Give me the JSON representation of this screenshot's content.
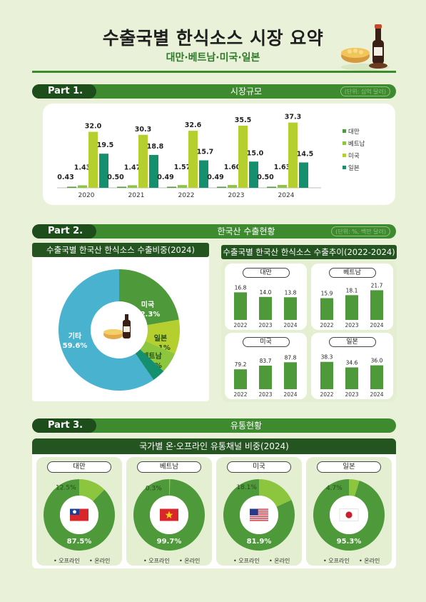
{
  "header": {
    "title": "수출국별 한식소스 시장 요약",
    "subtitle": "대만·베트남·미국·일본"
  },
  "part1": {
    "label": "Part 1.",
    "title": "시장규모",
    "unit": "(단위: 십억 달러)"
  },
  "part2": {
    "label": "Part 2.",
    "title": "한국산 수출현황",
    "unit": "(단위: %, 백만 달러)",
    "pie_heading": "수출국별 한국산 한식소스 수출비중(2024)",
    "trend_heading": "수출국별 한국산 한식소스 수출추이(2022-2024)"
  },
  "part3": {
    "label": "Part 3.",
    "title": "유통현황",
    "heading": "국가별 온·오프라인 유통채널 비중(2024)",
    "legend_offline": "• 오프라인",
    "legend_online": "• 온라인"
  },
  "colors": {
    "taiwan": "#4e9a3a",
    "vietnam": "#8cc63f",
    "usa": "#b5cf2f",
    "japan": "#14906f",
    "other": "#48b2cf",
    "offline": "#4e9a3a",
    "online": "#8cc63f",
    "mini_bar": "#4e9a3a"
  },
  "chart_data": [
    {
      "type": "bar",
      "categories": [
        "2020",
        "2021",
        "2022",
        "2023",
        "2024"
      ],
      "series": [
        {
          "name": "대만",
          "values": [
            0.43,
            0.5,
            0.49,
            0.49,
            0.5
          ],
          "labels": [
            "0.43",
            "0.50",
            "0.49",
            "0.49",
            "0.50"
          ],
          "color": "#4e9a3a"
        },
        {
          "name": "베트남",
          "values": [
            1.43,
            1.47,
            1.57,
            1.6,
            1.63
          ],
          "labels": [
            "1.43",
            "1.47",
            "1.57",
            "1.60",
            "1.63"
          ],
          "color": "#8cc63f"
        },
        {
          "name": "미국",
          "values": [
            32.0,
            30.3,
            32.6,
            35.5,
            37.3
          ],
          "labels": [
            "32.0",
            "30.3",
            "32.6",
            "35.5",
            "37.3"
          ],
          "color": "#b5cf2f"
        },
        {
          "name": "일본",
          "values": [
            19.5,
            18.8,
            15.7,
            15.0,
            14.5
          ],
          "labels": [
            "19.5",
            "18.8",
            "15.7",
            "15.0",
            "14.5"
          ],
          "color": "#14906f"
        }
      ],
      "ylim": [
        0,
        40
      ],
      "legend": "right",
      "grid": false
    },
    {
      "type": "pie",
      "donut": true,
      "slices": [
        {
          "name": "미국",
          "value": 22.3,
          "label": "22.3%",
          "color": "#4e9a3a"
        },
        {
          "name": "일본",
          "value": 9.1,
          "label": "9.1%",
          "color": "#b5cf2f"
        },
        {
          "name": "베트남",
          "value": 5.5,
          "label": "5.5%",
          "color": "#8cc63f"
        },
        {
          "name": "대만",
          "value": 3.5,
          "label": "3.5%",
          "color": "#14906f"
        },
        {
          "name": "기타",
          "value": 59.6,
          "label": "59.6%",
          "color": "#48b2cf"
        }
      ]
    },
    {
      "type": "bar",
      "name": "대만",
      "categories": [
        "2022",
        "2023",
        "2024"
      ],
      "values": [
        16.8,
        14.0,
        13.8
      ],
      "labels": [
        "16.8",
        "14.0",
        "13.8"
      ],
      "ylim": [
        0,
        20
      ]
    },
    {
      "type": "bar",
      "name": "베트남",
      "categories": [
        "2022",
        "2023",
        "2024"
      ],
      "values": [
        15.9,
        18.1,
        21.7
      ],
      "labels": [
        "15.9",
        "18.1",
        "21.7"
      ],
      "ylim": [
        0,
        24
      ]
    },
    {
      "type": "bar",
      "name": "미국",
      "categories": [
        "2022",
        "2023",
        "2024"
      ],
      "values": [
        79.2,
        83.7,
        87.8
      ],
      "labels": [
        "79.2",
        "83.7",
        "87.8"
      ],
      "ylim": [
        55,
        95
      ]
    },
    {
      "type": "bar",
      "name": "일본",
      "categories": [
        "2022",
        "2023",
        "2024"
      ],
      "values": [
        38.3,
        34.6,
        36.0
      ],
      "labels": [
        "38.3",
        "34.6",
        "36.0"
      ],
      "ylim": [
        20,
        42
      ]
    },
    {
      "type": "pie",
      "donut": true,
      "name": "대만",
      "flag": "taiwan",
      "slices": [
        {
          "name": "오프라인",
          "value": 87.5,
          "label": "87.5%",
          "color": "#4e9a3a"
        },
        {
          "name": "온라인",
          "value": 12.5,
          "label": "12.5%",
          "color": "#8cc63f"
        }
      ]
    },
    {
      "type": "pie",
      "donut": true,
      "name": "베트남",
      "flag": "vietnam",
      "slices": [
        {
          "name": "오프라인",
          "value": 99.7,
          "label": "99.7%",
          "color": "#4e9a3a"
        },
        {
          "name": "온라인",
          "value": 0.3,
          "label": "0.3%",
          "color": "#8cc63f"
        }
      ]
    },
    {
      "type": "pie",
      "donut": true,
      "name": "미국",
      "flag": "usa",
      "slices": [
        {
          "name": "오프라인",
          "value": 81.9,
          "label": "81.9%",
          "color": "#4e9a3a"
        },
        {
          "name": "온라인",
          "value": 18.1,
          "label": "18.1%",
          "color": "#8cc63f"
        }
      ]
    },
    {
      "type": "pie",
      "donut": true,
      "name": "일본",
      "flag": "japan",
      "slices": [
        {
          "name": "오프라인",
          "value": 95.3,
          "label": "95.3%",
          "color": "#4e9a3a"
        },
        {
          "name": "온라인",
          "value": 4.7,
          "label": "4.7%",
          "color": "#8cc63f"
        }
      ]
    }
  ]
}
